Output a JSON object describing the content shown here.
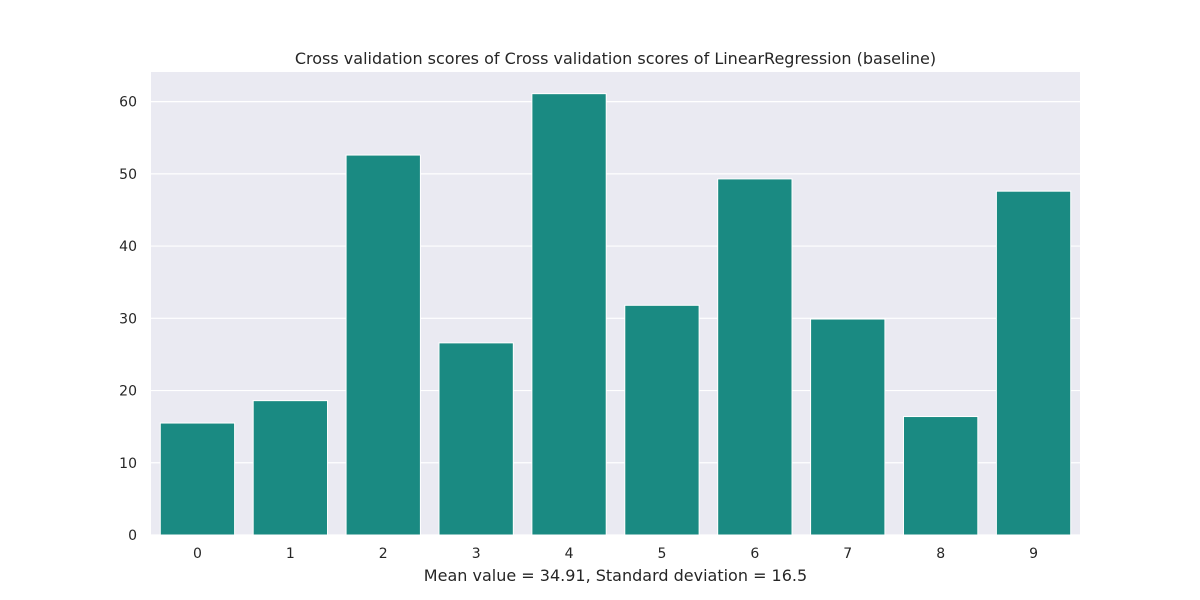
{
  "chart_data": {
    "type": "bar",
    "title": "Cross validation scores of Cross validation scores of LinearRegression (baseline)",
    "xlabel": "Mean value = 34.91, Standard deviation = 16.5",
    "ylabel": "",
    "categories": [
      "0",
      "1",
      "2",
      "3",
      "4",
      "5",
      "6",
      "7",
      "8",
      "9"
    ],
    "values": [
      15.5,
      18.6,
      52.6,
      26.6,
      61.1,
      31.8,
      49.3,
      29.9,
      16.4,
      47.6
    ],
    "ylim": [
      0,
      64.1
    ],
    "yticks": [
      "0",
      "10",
      "20",
      "30",
      "40",
      "50",
      "60"
    ],
    "grid": true,
    "legend": "none",
    "colors": {
      "bar": "#1a8a82",
      "plot_background": "#eaeaf2",
      "grid": "#ffffff",
      "text": "#262626"
    }
  }
}
